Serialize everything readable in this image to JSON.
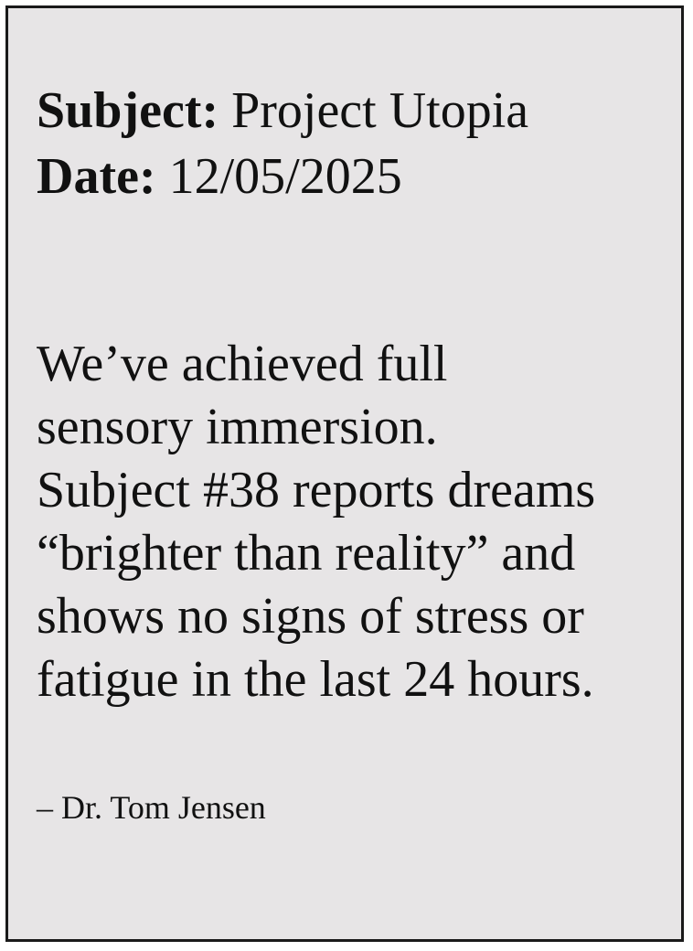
{
  "header": {
    "subject_label": "Subject:",
    "subject_value": "Project Utopia",
    "date_label": "Date:",
    "date_value": "12/05/2025"
  },
  "body": {
    "lines": [
      "We’ve achieved full",
      "sensory immersion.",
      "Subject #38 reports dreams",
      "“brighter than reality” and",
      "shows no signs of stress or",
      "fatigue in the last 24 hours."
    ]
  },
  "signature": "– Dr. Tom Jensen",
  "colors": {
    "card_background": "#e7e5e6",
    "border": "#1a1a1a",
    "text": "#111111"
  }
}
